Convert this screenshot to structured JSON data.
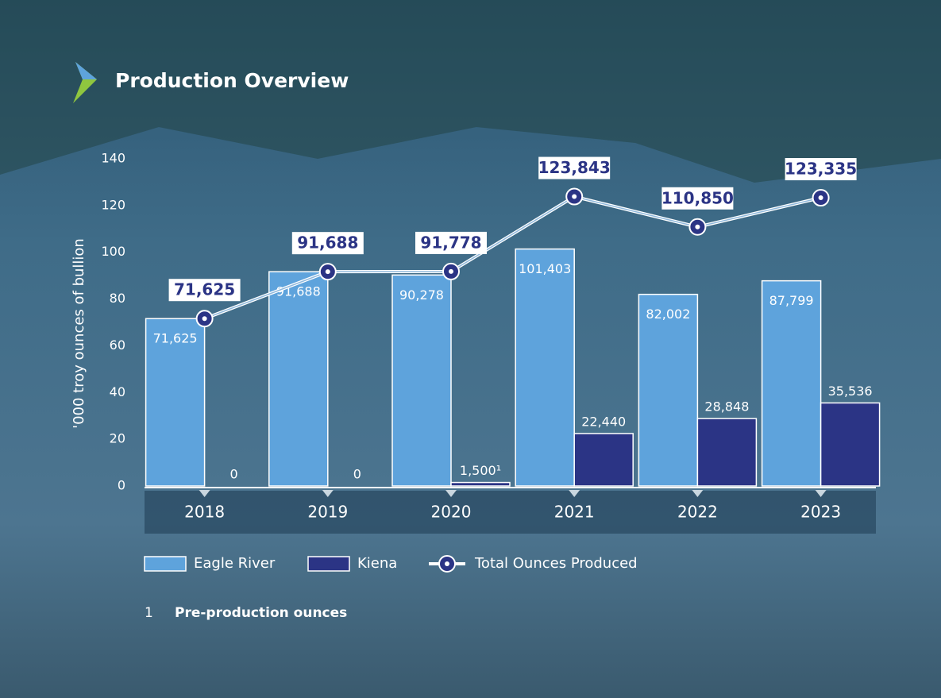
{
  "chart_data": {
    "type": "bar-line",
    "title": "Production Overview",
    "y_label": "'000 troy ounces of bullion",
    "categories": [
      "2018",
      "2019",
      "2020",
      "2021",
      "2022",
      "2023"
    ],
    "series": [
      {
        "name": "Eagle River",
        "type": "bar",
        "color": "#5ea3dc",
        "values": [
          71.625,
          91.688,
          90.278,
          101.403,
          82.002,
          87.799
        ],
        "value_labels": [
          "71,625",
          "91,688",
          "90,278",
          "101,403",
          "82,002",
          "87,799"
        ]
      },
      {
        "name": "Kiena",
        "type": "bar",
        "color": "#2b3485",
        "values": [
          0,
          0,
          1.5,
          22.44,
          28.848,
          35.536
        ],
        "value_labels": [
          "0",
          "0",
          "1,500¹",
          "22,440",
          "28,848",
          "35,536"
        ]
      },
      {
        "name": "Total Ounces Produced",
        "type": "line",
        "color": "#2b3485",
        "values": [
          71.625,
          91.688,
          91.778,
          123.843,
          110.85,
          123.335
        ],
        "value_labels": [
          "71,625",
          "91,688",
          "91,778",
          "123,843",
          "110,850",
          "123,335"
        ]
      }
    ],
    "ylim": [
      0,
      140
    ],
    "yticks": [
      0,
      20,
      40,
      60,
      80,
      100,
      120,
      140
    ],
    "footnote": {
      "marker": "1",
      "text": "Pre-production ounces"
    }
  }
}
